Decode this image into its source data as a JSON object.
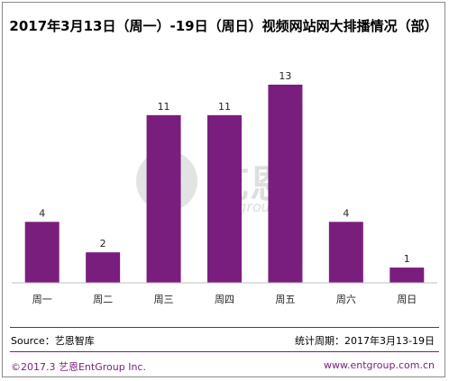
{
  "colors": {
    "bar": "#7a1e7e",
    "footer_accent": "#7a1e7e",
    "watermark": "#d9d9d9"
  },
  "chart_data": {
    "type": "bar",
    "title": "2017年3月13日（周一）-19日（周日）视频网站网大排播情况（部）",
    "categories": [
      "周一",
      "周二",
      "周三",
      "周四",
      "周五",
      "周六",
      "周日"
    ],
    "values": [
      4,
      2,
      11,
      11,
      13,
      4,
      1
    ],
    "xlabel": "",
    "ylabel": "",
    "ylim": [
      0,
      13
    ],
    "grid": false,
    "legend": "none"
  },
  "watermark": {
    "cn": "艺恩",
    "en": "entgroup"
  },
  "footer": {
    "source": "Source：艺恩智库",
    "period": "统计周期：2017年3月13-19日",
    "copyright": "©2017.3  艺恩EntGroup Inc.",
    "website": "www.entgroup.com.cn"
  }
}
